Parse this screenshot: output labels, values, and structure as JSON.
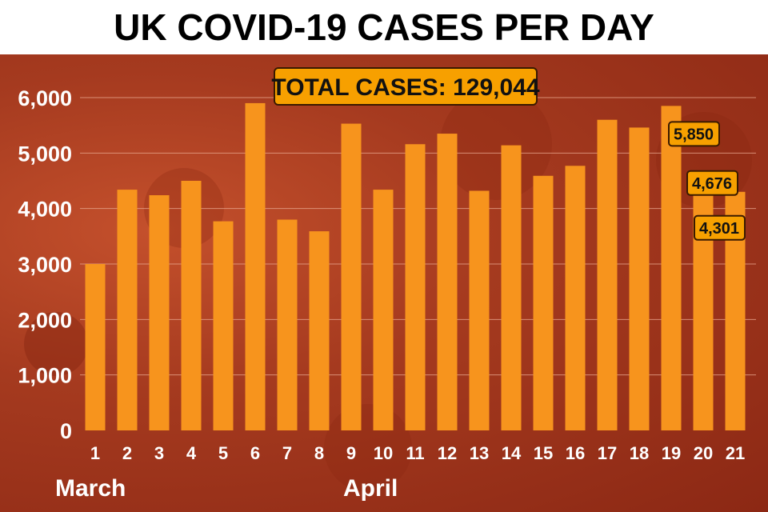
{
  "title": "UK COVID-19 CASES PER DAY",
  "total_label": "TOTAL CASES: 129,044",
  "colors": {
    "bar": "#f7941d",
    "banner": "#ffffff",
    "background": "#a53a1f",
    "callout": "#f7a000",
    "text": "#ffffff"
  },
  "chart_data": {
    "type": "bar",
    "title": "UK COVID-19 CASES PER DAY",
    "xlabel": "",
    "ylabel": "",
    "ylim": [
      0,
      6000
    ],
    "yticks": [
      0,
      1000,
      2000,
      3000,
      4000,
      5000,
      6000
    ],
    "ytick_labels": [
      "0",
      "1,000",
      "2,000",
      "3,000",
      "4,000",
      "5,000",
      "6,000"
    ],
    "grid": true,
    "categories": [
      "1",
      "2",
      "3",
      "4",
      "5",
      "6",
      "7",
      "8",
      "9",
      "10",
      "11",
      "12",
      "13",
      "14",
      "15",
      "16",
      "17",
      "18",
      "19",
      "20",
      "21"
    ],
    "values": [
      3000,
      4340,
      4240,
      4500,
      3770,
      5900,
      3800,
      3590,
      5530,
      4340,
      5160,
      5350,
      4320,
      5140,
      4590,
      4770,
      5600,
      5460,
      5850,
      4676,
      4301
    ],
    "group_labels": [
      {
        "text": "March",
        "start_index": 0
      },
      {
        "text": "April",
        "start_index": 9
      }
    ],
    "annotations": [
      {
        "index": 18,
        "text": "5,850"
      },
      {
        "index": 19,
        "text": "4,676"
      },
      {
        "index": 20,
        "text": "4,301"
      }
    ],
    "total_annotation": "TOTAL CASES: 129,044"
  }
}
